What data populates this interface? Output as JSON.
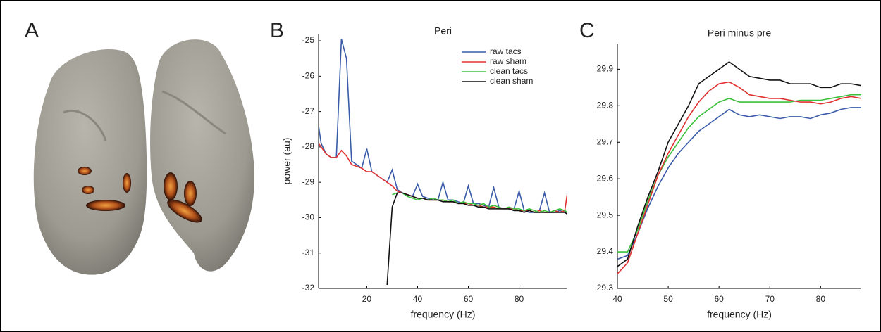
{
  "panel_labels": [
    "A",
    "B",
    "C"
  ],
  "chart_data": [
    {
      "type": "line",
      "title": "Peri",
      "xlabel": "frequency (Hz)",
      "ylabel": "power (au)",
      "x": [
        1,
        2,
        4,
        6,
        8,
        10,
        12,
        14,
        16,
        18,
        20,
        22,
        24,
        26,
        28,
        30,
        32,
        34,
        36,
        38,
        40,
        42,
        44,
        46,
        48,
        50,
        52,
        54,
        56,
        58,
        60,
        62,
        64,
        66,
        68,
        70,
        72,
        74,
        76,
        78,
        80,
        82,
        84,
        86,
        88,
        90,
        92,
        94,
        96,
        98,
        99
      ],
      "series": [
        {
          "name": "raw tacs",
          "color": "#3a5ba8",
          "values": [
            -27.4,
            -27.9,
            -28.2,
            -28.3,
            -28.3,
            -24.95,
            -25.5,
            -28.4,
            -28.5,
            -28.6,
            -28.05,
            -28.7,
            -28.8,
            -28.9,
            -29.0,
            -28.65,
            -29.2,
            -29.3,
            -29.35,
            -29.4,
            -29.05,
            -29.4,
            -29.45,
            -29.5,
            -29.5,
            -29.0,
            -29.5,
            -29.5,
            -29.55,
            -29.6,
            -29.1,
            -29.6,
            -29.6,
            -29.65,
            -29.7,
            -29.15,
            -29.7,
            -29.75,
            -29.75,
            -29.75,
            -29.25,
            -29.8,
            -29.85,
            -29.85,
            -29.8,
            -29.3,
            -29.85,
            -29.85,
            -29.8,
            -29.85,
            -29.9
          ]
        },
        {
          "name": "raw sham",
          "color": "#e03030",
          "values": [
            -27.9,
            -28.0,
            -28.2,
            -28.3,
            -28.3,
            -28.1,
            -28.25,
            -28.5,
            -28.55,
            -28.6,
            -28.7,
            -28.7,
            -28.8,
            -28.9,
            -29.0,
            -29.1,
            -29.25,
            -29.3,
            -29.35,
            -29.4,
            -29.45,
            -29.45,
            -29.5,
            -29.5,
            -29.5,
            -29.5,
            -29.55,
            -29.55,
            -29.6,
            -29.6,
            -29.6,
            -29.65,
            -29.65,
            -29.7,
            -29.7,
            -29.7,
            -29.75,
            -29.75,
            -29.75,
            -29.75,
            -29.8,
            -29.8,
            -29.8,
            -29.85,
            -29.8,
            -29.85,
            -29.85,
            -29.8,
            -29.85,
            -29.8,
            -29.3
          ]
        },
        {
          "name": "clean tacs",
          "color": "#3cc03c",
          "values": [
            null,
            null,
            null,
            null,
            null,
            null,
            null,
            null,
            null,
            null,
            null,
            null,
            null,
            null,
            null,
            -29.35,
            -29.3,
            -29.3,
            -29.4,
            -29.45,
            -29.5,
            -29.45,
            -29.5,
            -29.45,
            -29.5,
            -29.5,
            -29.55,
            -29.5,
            -29.6,
            -29.55,
            -29.6,
            -29.6,
            -29.65,
            -29.6,
            -29.7,
            -29.65,
            -29.7,
            -29.75,
            -29.7,
            -29.75,
            -29.75,
            -29.8,
            -29.75,
            -29.8,
            -29.85,
            -29.8,
            -29.85,
            -29.8,
            -29.75,
            -29.8,
            -29.85
          ]
        },
        {
          "name": "clean sham",
          "color": "#111111",
          "values": [
            null,
            null,
            null,
            null,
            null,
            null,
            null,
            null,
            null,
            null,
            null,
            null,
            null,
            null,
            -31.9,
            -29.7,
            -29.3,
            -29.3,
            -29.35,
            -29.4,
            -29.45,
            -29.45,
            -29.5,
            -29.5,
            -29.5,
            -29.55,
            -29.55,
            -29.55,
            -29.6,
            -29.6,
            -29.65,
            -29.65,
            -29.7,
            -29.7,
            -29.75,
            -29.75,
            -29.75,
            -29.75,
            -29.75,
            -29.8,
            -29.8,
            -29.85,
            -29.8,
            -29.85,
            -29.85,
            -29.85,
            -29.85,
            -29.85,
            -29.85,
            -29.85,
            -29.9
          ]
        }
      ],
      "xlim": [
        1,
        99
      ],
      "ylim": [
        -32,
        -24.8
      ],
      "xticks": [
        20,
        40,
        60,
        80
      ],
      "yticks": [
        -25,
        -26,
        -27,
        -28,
        -29,
        -30,
        -31,
        -32
      ],
      "legend": "upper right"
    },
    {
      "type": "line",
      "title": "Peri minus pre",
      "xlabel": "frequency (Hz)",
      "x": [
        40,
        42,
        44,
        46,
        48,
        50,
        52,
        54,
        56,
        58,
        60,
        62,
        64,
        66,
        68,
        70,
        72,
        74,
        76,
        78,
        80,
        82,
        84,
        86,
        88
      ],
      "series": [
        {
          "color": "#3a5ba8",
          "values": [
            29.38,
            29.39,
            29.45,
            29.52,
            29.58,
            29.63,
            29.67,
            29.7,
            29.73,
            29.75,
            29.77,
            29.79,
            29.775,
            29.77,
            29.775,
            29.77,
            29.765,
            29.77,
            29.77,
            29.765,
            29.775,
            29.78,
            29.79,
            29.795,
            29.795
          ]
        },
        {
          "color": "#3cc03c",
          "values": [
            29.4,
            29.4,
            29.46,
            29.54,
            29.61,
            29.66,
            29.7,
            29.74,
            29.77,
            29.79,
            29.81,
            29.82,
            29.81,
            29.81,
            29.81,
            29.81,
            29.81,
            29.81,
            29.815,
            29.815,
            29.815,
            29.82,
            29.825,
            29.83,
            29.83
          ]
        },
        {
          "color": "#e03030",
          "values": [
            29.34,
            29.37,
            29.45,
            29.53,
            29.61,
            29.67,
            29.72,
            29.77,
            29.81,
            29.84,
            29.86,
            29.865,
            29.85,
            29.83,
            29.825,
            29.82,
            29.82,
            29.815,
            29.81,
            29.81,
            29.805,
            29.81,
            29.82,
            29.825,
            29.82
          ]
        },
        {
          "color": "#111111",
          "values": [
            29.36,
            29.38,
            29.47,
            29.55,
            29.62,
            29.7,
            29.75,
            29.8,
            29.86,
            29.88,
            29.9,
            29.92,
            29.9,
            29.88,
            29.875,
            29.87,
            29.87,
            29.86,
            29.86,
            29.86,
            29.85,
            29.85,
            29.86,
            29.86,
            29.855
          ]
        }
      ],
      "xlim": [
        40,
        88
      ],
      "ylim": [
        29.3,
        29.97
      ],
      "xticks": [
        40,
        50,
        60,
        70,
        80
      ],
      "yticks": [
        29.3,
        29.4,
        29.5,
        29.6,
        29.7,
        29.8,
        29.9
      ]
    }
  ]
}
